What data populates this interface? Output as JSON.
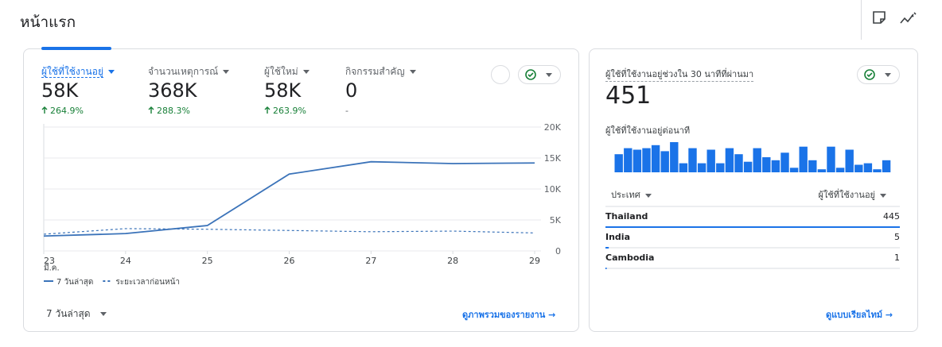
{
  "header": {
    "title": "หน้าแรก"
  },
  "overview": {
    "metrics": [
      {
        "label": "ผู้ใช้ที่ใช้งานอยู่",
        "value": "58K",
        "change": "264.9%"
      },
      {
        "label": "จำนวนเหตุการณ์",
        "value": "368K",
        "change": "288.3%"
      },
      {
        "label": "ผู้ใช้ใหม่",
        "value": "58K",
        "change": "263.9%"
      },
      {
        "label": "กิจกรรมสำคัญ",
        "value": "0",
        "change": "-"
      }
    ],
    "date_range": "7 วันล่าสุด",
    "link": "ดูภาพรวมของรายงาน"
  },
  "realtime": {
    "title": "ผู้ใช้ที่ใช้งานอยู่ช่วงใน 30 นาทีที่ผ่านมา",
    "value": "451",
    "subtitle": "ผู้ใช้ที่ใช้งานอยู่ต่อนาที",
    "table": {
      "headers": [
        "ประเทศ",
        "ผู้ใช้ที่ใช้งานอยู่"
      ],
      "rows": [
        [
          "Thailand",
          445
        ],
        [
          "India",
          5
        ],
        [
          "Cambodia",
          1
        ]
      ]
    },
    "link": "ดูแบบเรียลไทม์"
  },
  "chart_data": [
    {
      "type": "line",
      "categories": [
        "23",
        "24",
        "25",
        "26",
        "27",
        "28",
        "29"
      ],
      "x_sublabel": "มี.ค.",
      "series": [
        {
          "name": "7 วันล่าสุด",
          "color": "#3b73b9",
          "line_style": "solid",
          "values": [
            2400,
            2800,
            4100,
            12400,
            14400,
            14100,
            14200
          ]
        },
        {
          "name": "ระยะเวลาก่อนหน้า",
          "color": "#3b73b9",
          "line_style": "dashed",
          "values": [
            2700,
            3600,
            3500,
            3300,
            3100,
            3200,
            2900
          ]
        }
      ],
      "ylim": [
        0,
        20000
      ],
      "yticks": [
        0,
        {
          "value": 5000,
          "label": "5K"
        },
        {
          "value": 10000,
          "label": "10K"
        },
        {
          "value": 15000,
          "label": "15K"
        },
        {
          "value": 20000,
          "label": "20K"
        }
      ],
      "grid": true
    },
    {
      "type": "bar",
      "color": "#1a73e8",
      "values": [
        12,
        16,
        15,
        16,
        18,
        14,
        20,
        6,
        16,
        6,
        15,
        6,
        16,
        12,
        7,
        16,
        10,
        8,
        13,
        3,
        17,
        8,
        2,
        17,
        3,
        15,
        5,
        6,
        2,
        8
      ]
    }
  ]
}
